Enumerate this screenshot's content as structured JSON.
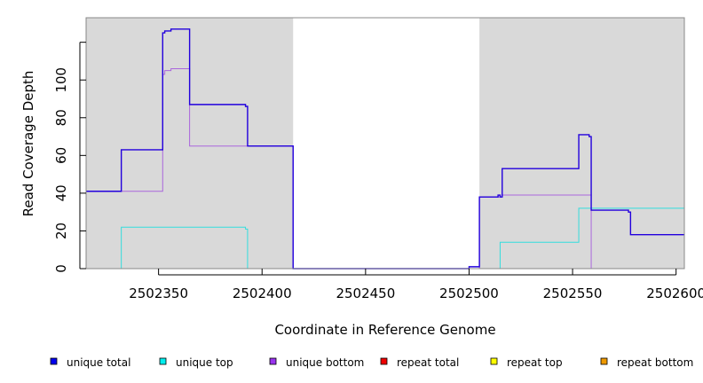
{
  "chart_data": {
    "type": "line",
    "title": "",
    "xlabel": "Coordinate in Reference Genome",
    "ylabel": "Read Coverage Depth",
    "xlim": [
      2502315,
      2502604
    ],
    "ylim": [
      0,
      133
    ],
    "x_ticks": [
      2502350,
      2502400,
      2502450,
      2502500,
      2502550,
      2502600
    ],
    "x_tick_labels": [
      "2502350",
      "2502400",
      "2502450",
      "2502500",
      "2502550",
      "2502600"
    ],
    "y_ticks": [
      0,
      20,
      40,
      60,
      80,
      100,
      120
    ],
    "y_tick_labels": [
      "0",
      "20",
      "40",
      "60",
      "80",
      "100",
      ""
    ],
    "shaded_regions": [
      [
        2502315,
        2502415
      ],
      [
        2502505,
        2502604
      ]
    ],
    "shading_color": "#d9d9d9",
    "legend_placement": "bottom",
    "series": [
      {
        "name": "unique total",
        "color": "#0000ee",
        "line_color": "#2200dd",
        "x": [
          2502315,
          2502332,
          2502332,
          2502352,
          2502352,
          2502353,
          2502353,
          2502356,
          2502356,
          2502358,
          2502358,
          2502365,
          2502365,
          2502392,
          2502392,
          2502393,
          2502393,
          2502415,
          2502415,
          2502500,
          2502500,
          2502505,
          2502505,
          2502514,
          2502514,
          2502515,
          2502515,
          2502516,
          2502516,
          2502553,
          2502553,
          2502558,
          2502558,
          2502559,
          2502559,
          2502577,
          2502577,
          2502578,
          2502578,
          2502604
        ],
        "y": [
          41,
          41,
          63,
          63,
          125,
          125,
          126,
          126,
          127,
          127,
          127,
          127,
          87,
          87,
          86,
          86,
          65,
          65,
          0,
          0,
          1,
          1,
          38,
          38,
          39,
          39,
          38,
          38,
          53,
          53,
          71,
          71,
          70,
          70,
          31,
          31,
          30,
          30,
          18,
          18
        ]
      },
      {
        "name": "unique top",
        "color": "#00eeee",
        "line_color": "#33dddd",
        "x": [
          2502315,
          2502332,
          2502332,
          2502392,
          2502392,
          2502393,
          2502393,
          2502515,
          2502515,
          2502553,
          2502553,
          2502604
        ],
        "y": [
          0,
          0,
          22,
          22,
          21,
          21,
          0,
          0,
          14,
          14,
          32,
          32
        ]
      },
      {
        "name": "unique bottom",
        "color": "#9933ee",
        "line_color": "#aa66dd",
        "x": [
          2502315,
          2502352,
          2502352,
          2502353,
          2502353,
          2502356,
          2502356,
          2502365,
          2502365,
          2502393,
          2502393,
          2502415,
          2502415,
          2502505,
          2502505,
          2502516,
          2502516,
          2502559,
          2502559,
          2502604
        ],
        "y": [
          41,
          41,
          103,
          103,
          105,
          105,
          106,
          106,
          65,
          65,
          65,
          65,
          0,
          0,
          38,
          38,
          39,
          39,
          0,
          0
        ]
      },
      {
        "name": "repeat total",
        "color": "#ee0000",
        "line_color": "#ee0000",
        "x": [
          2502315,
          2502604
        ],
        "y": [
          0,
          0
        ]
      },
      {
        "name": "repeat top",
        "color": "#ffff00",
        "line_color": "#eeee00",
        "x": [
          2502315,
          2502604
        ],
        "y": [
          0,
          0
        ]
      },
      {
        "name": "repeat bottom",
        "color": "#ee9900",
        "line_color": "#ee9900",
        "x": [
          2502315,
          2502604
        ],
        "y": [
          0,
          0
        ]
      }
    ]
  }
}
